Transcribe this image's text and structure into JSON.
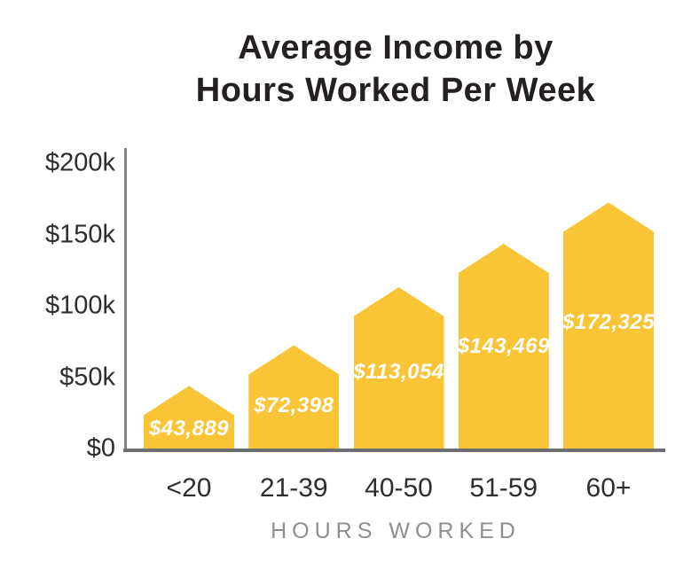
{
  "chart_data": {
    "type": "bar",
    "title": "Average Income by Hours Worked Per Week",
    "title_line1": "Average Income by",
    "title_line2": "Hours Worked Per Week",
    "xlabel": "HOURS WORKED",
    "categories": [
      "<20",
      "21-39",
      "40-50",
      "51-59",
      "60+"
    ],
    "values": [
      43889,
      72398,
      113054,
      143469,
      172325
    ],
    "value_labels": [
      "$43,889",
      "$72,398",
      "$113,054",
      "$143,469",
      "$172,325"
    ],
    "y_ticks": [
      {
        "value": 0,
        "label": "$0"
      },
      {
        "value": 50000,
        "label": "$50k"
      },
      {
        "value": 100000,
        "label": "$100k"
      },
      {
        "value": 150000,
        "label": "$150k"
      },
      {
        "value": 200000,
        "label": "$200k"
      }
    ],
    "ylim": [
      0,
      200000
    ],
    "grid": false,
    "legend": false,
    "bar_shape": "pentagon-peak",
    "colors": {
      "bar": "#FAC437",
      "bar_value_label": "#FFFFFF",
      "title": "#241F20",
      "axis_text": "#2E2E30",
      "x_axis_title": "#8E8F92",
      "x_axis_line": "#6D6E70",
      "y_axis_line": "#85868A"
    }
  }
}
